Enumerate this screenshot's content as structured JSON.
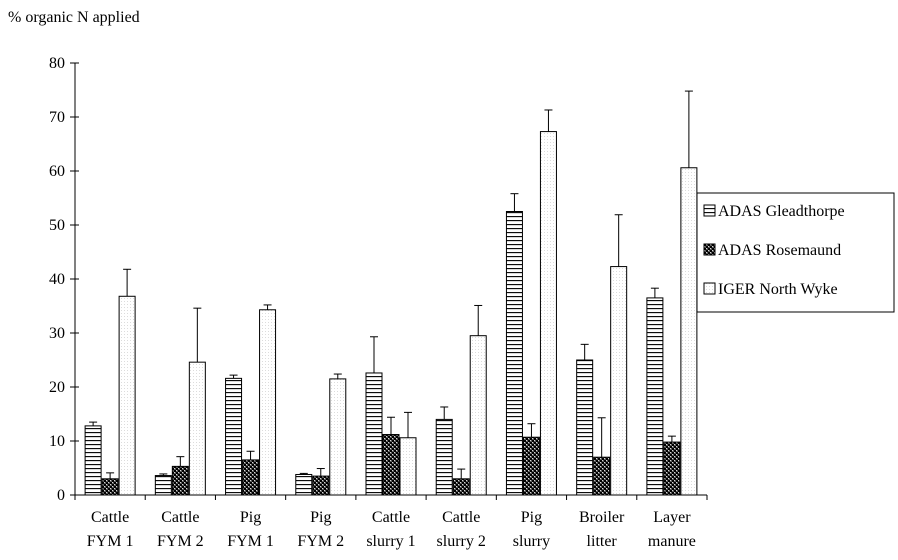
{
  "chart_data": {
    "type": "bar",
    "ylabel": "% organic N applied",
    "ylim": [
      0,
      80
    ],
    "yticks": [
      0,
      10,
      20,
      30,
      40,
      50,
      60,
      70,
      80
    ],
    "grid": false,
    "legend_position": "right",
    "categories": [
      [
        "Cattle",
        "FYM 1"
      ],
      [
        "Cattle",
        "FYM 2"
      ],
      [
        "Pig",
        "FYM 1"
      ],
      [
        "Pig",
        "FYM 2"
      ],
      [
        "Cattle",
        "slurry 1"
      ],
      [
        "Cattle",
        "slurry 2"
      ],
      [
        "Pig",
        "slurry"
      ],
      [
        "Broiler",
        "litter"
      ],
      [
        "Layer",
        "manure"
      ]
    ],
    "series": [
      {
        "name": "ADAS Gleadthorpe",
        "pattern": "horizontal-lines",
        "values": [
          12.8,
          3.6,
          21.6,
          3.8,
          22.6,
          14.0,
          52.5,
          25.0,
          36.5
        ],
        "errors": [
          0.7,
          0.3,
          0.6,
          0.2,
          6.7,
          2.3,
          3.3,
          2.9,
          1.8
        ]
      },
      {
        "name": "ADAS Rosemaund",
        "pattern": "cross-hatch",
        "values": [
          3.0,
          5.3,
          6.5,
          3.5,
          11.2,
          3.0,
          10.7,
          7.0,
          9.8
        ],
        "errors": [
          1.1,
          1.8,
          1.6,
          1.4,
          3.2,
          1.8,
          2.5,
          7.3,
          1.1
        ]
      },
      {
        "name": "IGER North Wyke",
        "pattern": "open",
        "values": [
          36.8,
          24.6,
          34.3,
          21.5,
          10.6,
          29.5,
          67.3,
          42.3,
          60.6
        ],
        "errors": [
          5.0,
          10.0,
          0.9,
          0.9,
          4.7,
          5.6,
          4.0,
          9.6,
          14.2
        ]
      }
    ]
  }
}
